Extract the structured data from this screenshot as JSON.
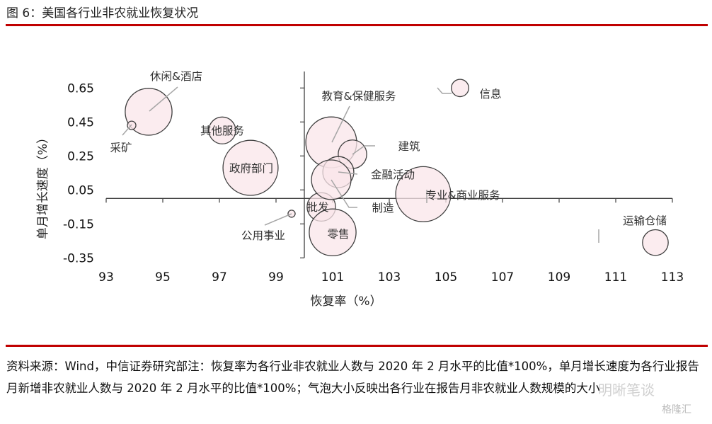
{
  "figure_title": "图 6：美国各行业非农就业恢复状况",
  "footnote": "资料来源：Wind，中信证券研究部注：恢复率为各行业非农就业人数与 2020 年 2 月水平的比值*100%，单月增长速度为各行业报告月新增非农就业人数与 2020 年 2 月水平的比值*100%；气泡大小反映出各行业在报告月非农就业人数规模的大小",
  "watermark": "明晰笔谈",
  "watermark2": "格隆汇",
  "colors": {
    "accent_rule": "#c00000",
    "bubble_fill": "#f9e6ea",
    "bubble_stroke": "#404040",
    "leader": "#a6a6a6"
  },
  "chart_data": {
    "type": "bubble",
    "title": "",
    "xlabel": "恢复率（%）",
    "ylabel": "单月增长速度（%）",
    "xlim": [
      93,
      113
    ],
    "ylim": [
      -0.35,
      0.65
    ],
    "x_ticks": [
      "93",
      "95",
      "97",
      "99",
      "101",
      "103",
      "105",
      "107",
      "109",
      "111",
      "113"
    ],
    "y_ticks": [
      "0.65",
      "0.45",
      "0.25",
      "0.05",
      "-0.15",
      "-0.35"
    ],
    "x_axis_crosses_y": 0,
    "y_axis_crosses_x": 100,
    "grid": false,
    "size_note": "relative bubble area",
    "points": [
      {
        "label": "休闲&酒店",
        "x": 94.5,
        "y": 0.51,
        "size": 73
      },
      {
        "label": "采矿",
        "x": 93.9,
        "y": 0.43,
        "size": 2.4
      },
      {
        "label": "其他服务",
        "x": 97.1,
        "y": 0.4,
        "size": 24
      },
      {
        "label": "政府部门",
        "x": 98.1,
        "y": 0.18,
        "size": 101
      },
      {
        "label": "公用事业",
        "x": 99.55,
        "y": -0.09,
        "size": 1.7
      },
      {
        "label": "批发",
        "x": 100.6,
        "y": -0.05,
        "size": 27
      },
      {
        "label": "零售",
        "x": 101.0,
        "y": -0.2,
        "size": 73
      },
      {
        "label": "教育&保健服务",
        "x": 100.95,
        "y": 0.33,
        "size": 86
      },
      {
        "label": "建筑",
        "x": 101.7,
        "y": 0.26,
        "size": 27
      },
      {
        "label": "金融活动",
        "x": 101.2,
        "y": 0.155,
        "size": 32
      },
      {
        "label": "制造",
        "x": 100.95,
        "y": 0.11,
        "size": 52
      },
      {
        "label": "专业&商业服务",
        "x": 104.2,
        "y": 0.025,
        "size": 101
      },
      {
        "label": "信息",
        "x": 105.5,
        "y": 0.65,
        "size": 10
      },
      {
        "label": "运输仓储",
        "x": 112.4,
        "y": -0.26,
        "size": 22
      }
    ]
  }
}
